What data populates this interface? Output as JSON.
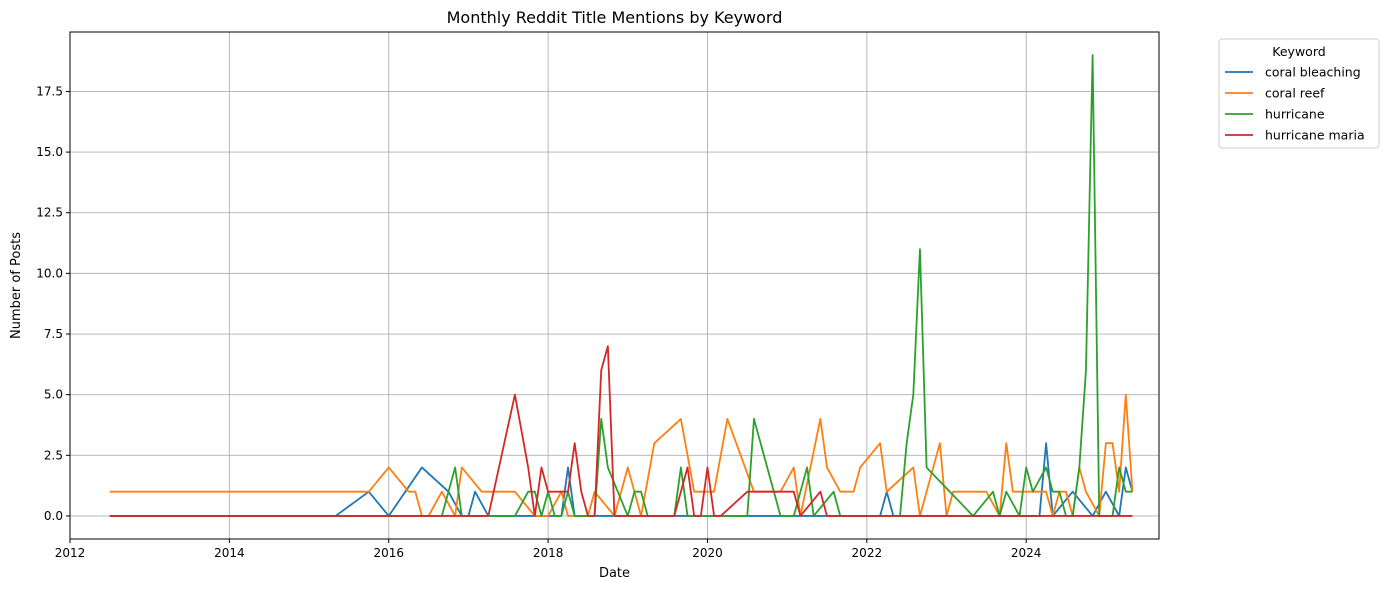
{
  "chart_data": {
    "type": "line",
    "title": "Monthly Reddit Title Mentions by Keyword",
    "xlabel": "Date",
    "ylabel": "Number of Posts",
    "xlim": [
      "2012-01",
      "2025-09"
    ],
    "ylim": [
      -0.95,
      19.95
    ],
    "xticks": [
      {
        "value": "2012-01",
        "label": "2012"
      },
      {
        "value": "2014-01",
        "label": "2014"
      },
      {
        "value": "2016-01",
        "label": "2016"
      },
      {
        "value": "2018-01",
        "label": "2018"
      },
      {
        "value": "2020-01",
        "label": "2020"
      },
      {
        "value": "2022-01",
        "label": "2022"
      },
      {
        "value": "2024-01",
        "label": "2024"
      }
    ],
    "yticks": [
      {
        "value": 0,
        "label": "0.0"
      },
      {
        "value": 2.5,
        "label": "2.5"
      },
      {
        "value": 5,
        "label": "5.0"
      },
      {
        "value": 7.5,
        "label": "7.5"
      },
      {
        "value": 10,
        "label": "10.0"
      },
      {
        "value": 12.5,
        "label": "12.5"
      },
      {
        "value": 15,
        "label": "15.0"
      },
      {
        "value": 17.5,
        "label": "17.5"
      }
    ],
    "grid": true,
    "legend": {
      "title": "Keyword",
      "placement": "outside-top-right"
    },
    "series": [
      {
        "name": "coral bleaching",
        "color": "#1f77b4",
        "points": [
          [
            "2012-07",
            0
          ],
          [
            "2015-05",
            0
          ],
          [
            "2015-10",
            1
          ],
          [
            "2016-01",
            0
          ],
          [
            "2016-06",
            2
          ],
          [
            "2016-10",
            1
          ],
          [
            "2016-12",
            0
          ],
          [
            "2017-01",
            0
          ],
          [
            "2017-02",
            1
          ],
          [
            "2017-04",
            0
          ],
          [
            "2018-03",
            0
          ],
          [
            "2018-04",
            2
          ],
          [
            "2018-05",
            0
          ],
          [
            "2022-03",
            0
          ],
          [
            "2022-04",
            1
          ],
          [
            "2022-05",
            0
          ],
          [
            "2024-03",
            0
          ],
          [
            "2024-04",
            3
          ],
          [
            "2024-05",
            0
          ],
          [
            "2024-08",
            1
          ],
          [
            "2024-11",
            0
          ],
          [
            "2025-01",
            1
          ],
          [
            "2025-03",
            0
          ],
          [
            "2025-04",
            2
          ],
          [
            "2025-05",
            1
          ]
        ]
      },
      {
        "name": "coral reef",
        "color": "#ff7f0e",
        "points": [
          [
            "2012-07",
            1
          ],
          [
            "2015-10",
            1
          ],
          [
            "2016-01",
            2
          ],
          [
            "2016-04",
            1
          ],
          [
            "2016-05",
            1
          ],
          [
            "2016-06",
            0
          ],
          [
            "2016-07",
            0
          ],
          [
            "2016-09",
            1
          ],
          [
            "2016-11",
            0
          ],
          [
            "2016-12",
            2
          ],
          [
            "2017-03",
            1
          ],
          [
            "2017-04",
            1
          ],
          [
            "2017-08",
            1
          ],
          [
            "2017-11",
            0
          ],
          [
            "2018-01",
            0
          ],
          [
            "2018-03",
            1
          ],
          [
            "2018-04",
            0
          ],
          [
            "2018-07",
            0
          ],
          [
            "2018-08",
            1
          ],
          [
            "2018-11",
            0
          ],
          [
            "2019-01",
            2
          ],
          [
            "2019-03",
            0
          ],
          [
            "2019-05",
            3
          ],
          [
            "2019-09",
            4
          ],
          [
            "2019-11",
            1
          ],
          [
            "2020-01",
            1
          ],
          [
            "2020-02",
            1
          ],
          [
            "2020-04",
            4
          ],
          [
            "2020-08",
            1
          ],
          [
            "2020-12",
            1
          ],
          [
            "2021-02",
            2
          ],
          [
            "2021-03",
            0
          ],
          [
            "2021-06",
            4
          ],
          [
            "2021-07",
            2
          ],
          [
            "2021-09",
            1
          ],
          [
            "2021-11",
            1
          ],
          [
            "2021-12",
            2
          ],
          [
            "2022-03",
            3
          ],
          [
            "2022-04",
            1
          ],
          [
            "2022-08",
            2
          ],
          [
            "2022-09",
            0
          ],
          [
            "2022-11",
            2
          ],
          [
            "2022-12",
            3
          ],
          [
            "2023-01",
            0
          ],
          [
            "2023-02",
            1
          ],
          [
            "2023-07",
            1
          ],
          [
            "2023-09",
            0
          ],
          [
            "2023-10",
            3
          ],
          [
            "2023-11",
            1
          ],
          [
            "2024-04",
            1
          ],
          [
            "2024-05",
            0
          ],
          [
            "2024-06",
            1
          ],
          [
            "2024-07",
            1
          ],
          [
            "2024-08",
            0
          ],
          [
            "2024-09",
            2
          ],
          [
            "2024-10",
            1
          ],
          [
            "2024-12",
            0
          ],
          [
            "2025-01",
            3
          ],
          [
            "2025-02",
            3
          ],
          [
            "2025-03",
            1
          ],
          [
            "2025-04",
            5
          ],
          [
            "2025-05",
            1
          ]
        ]
      },
      {
        "name": "hurricane",
        "color": "#2ca02c",
        "points": [
          [
            "2012-07",
            0
          ],
          [
            "2016-09",
            0
          ],
          [
            "2016-11",
            2
          ],
          [
            "2016-12",
            0
          ],
          [
            "2017-08",
            0
          ],
          [
            "2017-10",
            1
          ],
          [
            "2017-11",
            1
          ],
          [
            "2017-12",
            0
          ],
          [
            "2018-01",
            1
          ],
          [
            "2018-02",
            0
          ],
          [
            "2018-03",
            0
          ],
          [
            "2018-04",
            1
          ],
          [
            "2018-05",
            0
          ],
          [
            "2018-08",
            0
          ],
          [
            "2018-09",
            4
          ],
          [
            "2018-10",
            2
          ],
          [
            "2019-01",
            0
          ],
          [
            "2019-02",
            1
          ],
          [
            "2019-03",
            1
          ],
          [
            "2019-04",
            0
          ],
          [
            "2019-08",
            0
          ],
          [
            "2019-09",
            2
          ],
          [
            "2019-10",
            0
          ],
          [
            "2020-07",
            0
          ],
          [
            "2020-08",
            4
          ],
          [
            "2020-12",
            0
          ],
          [
            "2021-02",
            0
          ],
          [
            "2021-04",
            2
          ],
          [
            "2021-05",
            0
          ],
          [
            "2021-08",
            1
          ],
          [
            "2021-09",
            0
          ],
          [
            "2022-06",
            0
          ],
          [
            "2022-07",
            3
          ],
          [
            "2022-08",
            5
          ],
          [
            "2022-09",
            11
          ],
          [
            "2022-10",
            2
          ],
          [
            "2023-05",
            0
          ],
          [
            "2023-08",
            1
          ],
          [
            "2023-09",
            0
          ],
          [
            "2023-10",
            1
          ],
          [
            "2023-12",
            0
          ],
          [
            "2024-01",
            2
          ],
          [
            "2024-02",
            1
          ],
          [
            "2024-04",
            2
          ],
          [
            "2024-05",
            1
          ],
          [
            "2024-06",
            1
          ],
          [
            "2024-07",
            0
          ],
          [
            "2024-08",
            0
          ],
          [
            "2024-09",
            2
          ],
          [
            "2024-10",
            6
          ],
          [
            "2024-11",
            19
          ],
          [
            "2024-12",
            0
          ],
          [
            "2025-02",
            0
          ],
          [
            "2025-03",
            2
          ],
          [
            "2025-04",
            1
          ],
          [
            "2025-05",
            1
          ]
        ]
      },
      {
        "name": "hurricane maria",
        "color": "#d62728",
        "points": [
          [
            "2012-07",
            0
          ],
          [
            "2017-04",
            0
          ],
          [
            "2017-08",
            5
          ],
          [
            "2017-10",
            2
          ],
          [
            "2017-11",
            0
          ],
          [
            "2017-12",
            2
          ],
          [
            "2018-01",
            1
          ],
          [
            "2018-02",
            1
          ],
          [
            "2018-03",
            1
          ],
          [
            "2018-04",
            1
          ],
          [
            "2018-05",
            3
          ],
          [
            "2018-06",
            1
          ],
          [
            "2018-07",
            0
          ],
          [
            "2018-08",
            0
          ],
          [
            "2018-09",
            6
          ],
          [
            "2018-10",
            7
          ],
          [
            "2018-11",
            0
          ],
          [
            "2019-08",
            0
          ],
          [
            "2019-10",
            2
          ],
          [
            "2019-11",
            0
          ],
          [
            "2019-12",
            0
          ],
          [
            "2020-01",
            2
          ],
          [
            "2020-02",
            0
          ],
          [
            "2020-03",
            0
          ],
          [
            "2020-07",
            1
          ],
          [
            "2021-02",
            1
          ],
          [
            "2021-03",
            0
          ],
          [
            "2021-06",
            1
          ],
          [
            "2021-07",
            0
          ],
          [
            "2025-05",
            0
          ]
        ]
      }
    ]
  }
}
